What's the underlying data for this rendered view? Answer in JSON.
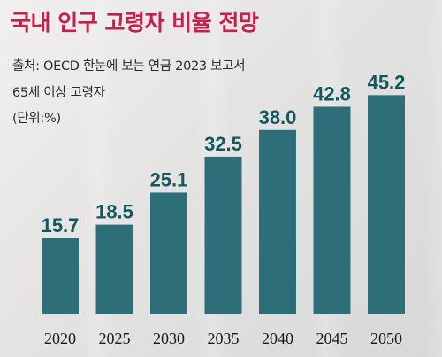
{
  "header": {
    "title": "국내 인구 고령자 비율 전망",
    "source": "출처: OECD 한눈에 보는 연금 2023 보고서",
    "description": "65세 이상 고령자",
    "unit": "(단위:%)"
  },
  "colors": {
    "bar": "#2e6e78",
    "title": "#c41f4f",
    "label": "#14585f"
  },
  "chart_data": {
    "type": "bar",
    "title": "국내 인구 고령자 비율 전망",
    "ylabel": "(단위:%)",
    "categories": [
      "2020",
      "2025",
      "2030",
      "2035",
      "2040",
      "2045",
      "2050"
    ],
    "values": [
      15.7,
      18.5,
      25.1,
      32.5,
      38.0,
      42.8,
      45.2
    ],
    "value_labels": [
      "15.7",
      "18.5",
      "25.1",
      "32.5",
      "38.0",
      "42.8",
      "45.2"
    ],
    "ylim": [
      0,
      50
    ],
    "grid": false,
    "legend": "none"
  }
}
